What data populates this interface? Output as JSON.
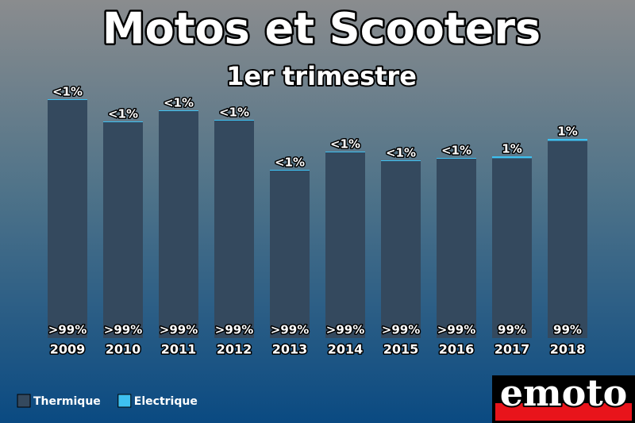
{
  "chart_data": {
    "type": "stacked_bar",
    "title": "Motos et Scooters",
    "subtitle": "1er trimestre",
    "categories": [
      "2009",
      "2010",
      "2011",
      "2012",
      "2013",
      "2014",
      "2015",
      "2016",
      "2017",
      "2018"
    ],
    "series": [
      {
        "name": "Thermique",
        "color": "#34495e",
        "values": [
          300,
          272,
          286,
          274,
          211,
          234,
          223,
          226,
          226.7,
          248.5
        ],
        "value_labels": [
          ">99%",
          ">99%",
          ">99%",
          ">99%",
          ">99%",
          ">99%",
          ">99%",
          ">99%",
          "99%",
          "99%"
        ]
      },
      {
        "name": "Electrique",
        "color": "#3ec0f0",
        "values": [
          1,
          1,
          1,
          1,
          1,
          1,
          1,
          1,
          2.3,
          2.5
        ],
        "value_labels": [
          "<1%",
          "<1%",
          "<1%",
          "<1%",
          "<1%",
          "<1%",
          "<1%",
          "<1%",
          "1%",
          "1%"
        ]
      }
    ],
    "legend": "bottom-left",
    "logo": "emoto"
  }
}
